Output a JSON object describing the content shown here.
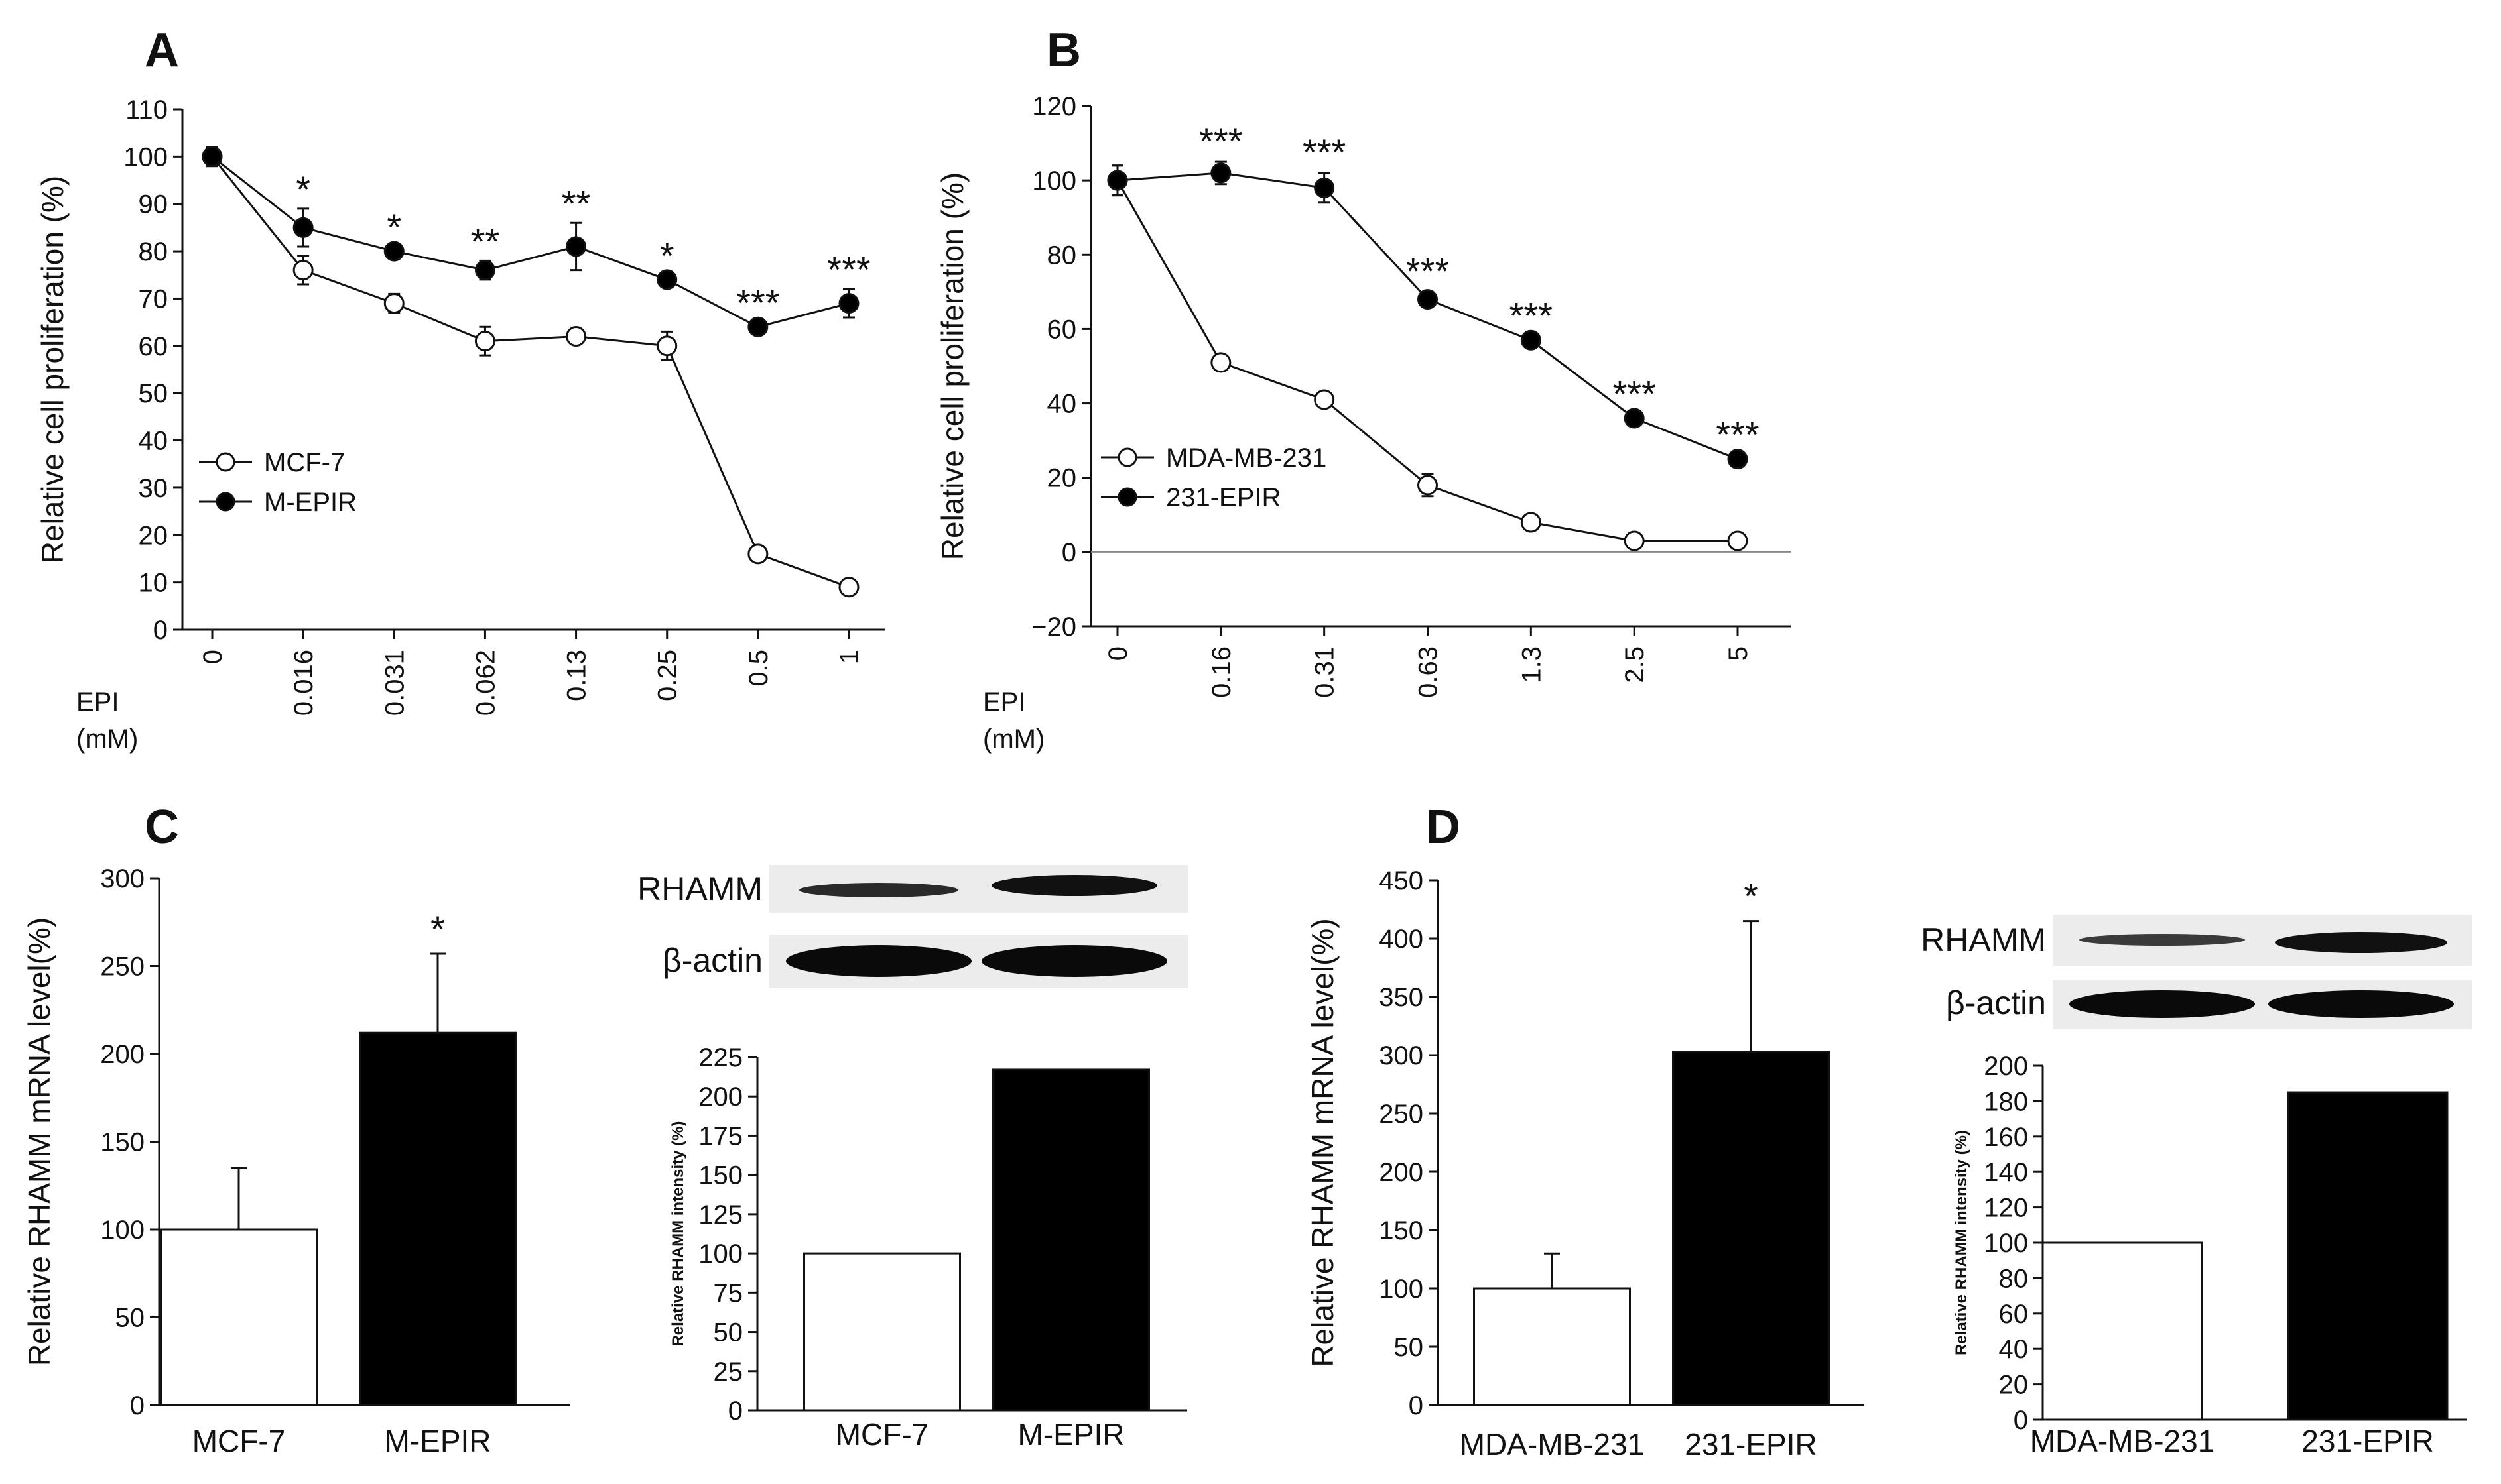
{
  "colors": {
    "axis": "#111111",
    "filled": "#000000",
    "open": "#ffffff",
    "zero_line": "#888888",
    "blot_bg": "#ececec"
  },
  "xaxis_name": {
    "line1": "EPI",
    "line2": "(mM)"
  },
  "blot": {
    "rhamm": "RHAMM",
    "actin": "β-actin"
  },
  "chart_data": [
    {
      "id": "A",
      "type": "line",
      "panel": "A",
      "title": "",
      "xlabel": "EPI (mM)",
      "ylabel": "Relative cell proliferation (%)",
      "ylim": [
        0,
        110
      ],
      "yticks": [
        "0",
        "10",
        "20",
        "30",
        "40",
        "50",
        "60",
        "70",
        "80",
        "90",
        "100",
        "110"
      ],
      "categories": [
        "0",
        "0.016",
        "0.031",
        "0.062",
        "0.13",
        "0.25",
        "0.5",
        "1"
      ],
      "series": [
        {
          "name": "MCF-7",
          "marker": "open",
          "values": [
            100,
            76,
            69,
            61,
            62,
            60,
            16,
            9
          ],
          "errors": [
            2,
            3,
            2,
            3,
            1,
            3,
            1,
            1
          ]
        },
        {
          "name": "M-EPIR",
          "marker": "filled",
          "values": [
            100,
            85,
            80,
            76,
            81,
            74,
            64,
            69
          ],
          "errors": [
            2,
            4,
            1,
            2,
            5,
            1,
            1,
            3
          ]
        }
      ],
      "significance": [
        "",
        "*",
        "*",
        "**",
        "**",
        "*",
        "***",
        "***"
      ],
      "legend_position": "bottom-left"
    },
    {
      "id": "B",
      "type": "line",
      "panel": "B",
      "title": "",
      "xlabel": "EPI (mM)",
      "ylabel": "Relative cell proliferation (%)",
      "ylim": [
        -20,
        120
      ],
      "yticks": [
        "−20",
        "0",
        "20",
        "40",
        "60",
        "80",
        "100",
        "120"
      ],
      "categories": [
        "0",
        "0.16",
        "0.31",
        "0.63",
        "1.3",
        "2.5",
        "5"
      ],
      "series": [
        {
          "name": "MDA-MB-231",
          "marker": "open",
          "values": [
            100,
            51,
            41,
            18,
            8,
            3,
            3
          ],
          "errors": [
            4,
            1,
            1,
            3,
            1,
            1,
            1
          ]
        },
        {
          "name": "231-EPIR",
          "marker": "filled",
          "values": [
            100,
            102,
            98,
            68,
            57,
            36,
            25
          ],
          "errors": [
            4,
            3,
            4,
            2,
            1,
            1,
            1
          ]
        }
      ],
      "significance": [
        "",
        "***",
        "***",
        "***",
        "***",
        "***",
        "***"
      ],
      "zero_line": true,
      "legend_position": "bottom-left"
    },
    {
      "id": "C1",
      "type": "bar",
      "panel": "C",
      "title": "",
      "ylabel": "Relative RHAMM mRNA level(%)",
      "ylim": [
        0,
        300
      ],
      "yticks": [
        "0",
        "50",
        "100",
        "150",
        "200",
        "250",
        "300"
      ],
      "categories": [
        "MCF-7",
        "M-EPIR"
      ],
      "values": [
        100,
        212
      ],
      "errors": [
        35,
        45
      ],
      "fills": [
        "open",
        "filled"
      ],
      "significance": [
        "",
        "*"
      ]
    },
    {
      "id": "C2",
      "type": "bar",
      "panel": "C",
      "title": "",
      "ylabel": "Relative RHAMM intensity (%)",
      "ylim": [
        0,
        225
      ],
      "yticks": [
        "0",
        "25",
        "50",
        "75",
        "100",
        "125",
        "150",
        "175",
        "200",
        "225"
      ],
      "categories": [
        "MCF-7",
        "M-EPIR"
      ],
      "values": [
        100,
        217
      ],
      "errors": [
        0,
        0
      ],
      "fills": [
        "open",
        "filled"
      ],
      "significance": [
        "",
        ""
      ]
    },
    {
      "id": "D1",
      "type": "bar",
      "panel": "D",
      "title": "",
      "ylabel": "Relative RHAMM mRNA level(%)",
      "ylim": [
        0,
        450
      ],
      "yticks": [
        "0",
        "50",
        "100",
        "150",
        "200",
        "250",
        "300",
        "350",
        "400",
        "450"
      ],
      "categories": [
        "MDA-MB-231",
        "231-EPIR"
      ],
      "values": [
        100,
        303
      ],
      "errors": [
        30,
        112
      ],
      "fills": [
        "open",
        "filled"
      ],
      "significance": [
        "",
        "*"
      ]
    },
    {
      "id": "D2",
      "type": "bar",
      "panel": "D",
      "title": "",
      "ylabel": "Relative RHAMM intensity (%)",
      "ylim": [
        0,
        200
      ],
      "yticks": [
        "0",
        "20",
        "40",
        "60",
        "80",
        "100",
        "120",
        "140",
        "160",
        "180",
        "200"
      ],
      "categories": [
        "MDA-MB-231",
        "231-EPIR"
      ],
      "values": [
        100,
        185
      ],
      "errors": [
        0,
        0
      ],
      "fills": [
        "open",
        "filled"
      ],
      "significance": [
        "",
        ""
      ]
    }
  ]
}
